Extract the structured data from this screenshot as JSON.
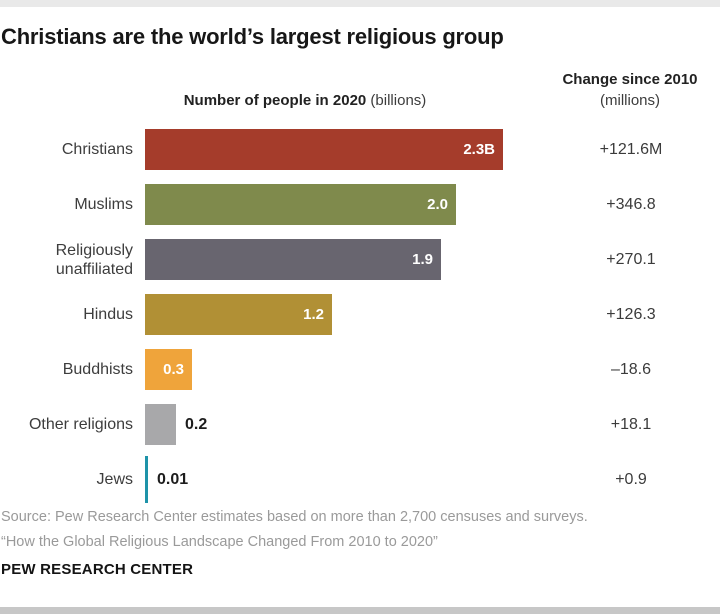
{
  "title": "Christians are the world’s largest religious group",
  "headers": {
    "people_bold": "Number of people in 2020",
    "people_note": " (billions)",
    "change_bold": "Change since 2010",
    "change_note": "(millions)"
  },
  "rows": [
    {
      "label": "Christians",
      "color": "#a53c2b",
      "value": 2.3,
      "value_label": "2.3B",
      "change_label": "+121.6M"
    },
    {
      "label": "Muslims",
      "color": "#7f8a4c",
      "value": 2.0,
      "value_label": "2.0",
      "change_label": "+346.8"
    },
    {
      "label": "Religiously unaffiliated",
      "color": "#68656f",
      "value": 1.9,
      "value_label": "1.9",
      "change_label": "+270.1"
    },
    {
      "label": "Hindus",
      "color": "#b19035",
      "value": 1.2,
      "value_label": "1.2",
      "change_label": "+126.3"
    },
    {
      "label": "Buddhists",
      "color": "#efa43b",
      "value": 0.3,
      "value_label": "0.3",
      "change_label": "–18.6"
    },
    {
      "label": "Other religions",
      "color": "#a8a8aa",
      "value": 0.2,
      "value_label": "0.2",
      "change_label": "+18.1"
    },
    {
      "label": "Jews",
      "color": "#1e93a9",
      "value": 0.01,
      "value_label": "0.01",
      "change_label": "+0.9"
    }
  ],
  "footer": {
    "source1": "Source: Pew Research Center estimates based on more than 2,700 censuses and surveys.",
    "source2": "“How the Global Religious Landscape Changed From 2010 to 2020”",
    "brand": "PEW RESEARCH CENTER"
  },
  "chart_data": {
    "type": "bar",
    "orientation": "horizontal",
    "title": "Christians are the world’s largest religious group",
    "categories": [
      "Christians",
      "Muslims",
      "Religiously unaffiliated",
      "Hindus",
      "Buddhists",
      "Other religions",
      "Jews"
    ],
    "series": [
      {
        "name": "Number of people in 2020 (billions)",
        "values": [
          2.3,
          2.0,
          1.9,
          1.2,
          0.3,
          0.2,
          0.01
        ]
      },
      {
        "name": "Change since 2010 (millions)",
        "values": [
          121.6,
          346.8,
          270.1,
          126.3,
          -18.6,
          18.1,
          0.9
        ]
      }
    ],
    "bar_colors": [
      "#a53c2b",
      "#7f8a4c",
      "#68656f",
      "#b19035",
      "#efa43b",
      "#a8a8aa",
      "#1e93a9"
    ],
    "data_labels": [
      "2.3B",
      "2.0",
      "1.9",
      "1.2",
      "0.3",
      "0.2",
      "0.01"
    ],
    "change_labels": [
      "+121.6M",
      "+346.8",
      "+270.1",
      "+126.3",
      "–18.6",
      "+18.1",
      "+0.9"
    ],
    "xlabel": "Number of people in 2020 (billions)",
    "ylabel": "",
    "xlim": [
      0,
      2.4
    ],
    "grid": false,
    "legend_position": "none",
    "source": "Pew Research Center"
  }
}
